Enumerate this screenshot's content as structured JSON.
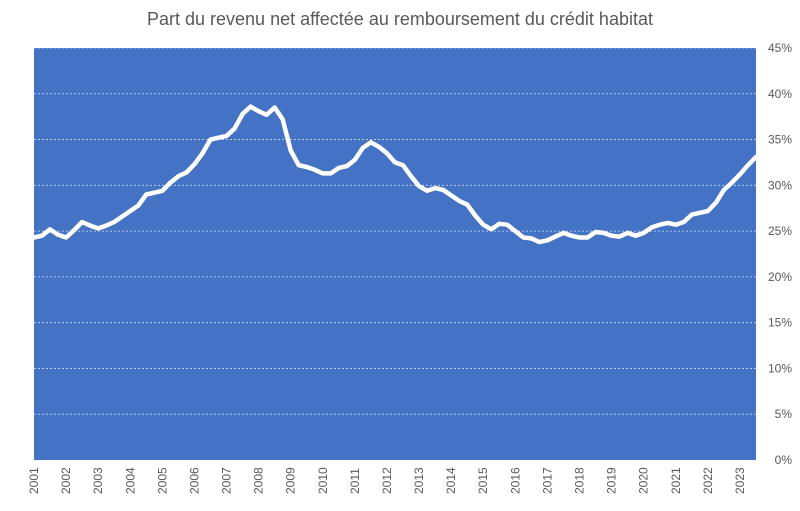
{
  "chart_data": {
    "type": "line",
    "title": "Part du revenu net affectée au remboursement du crédit habitat",
    "xlabel": "",
    "ylabel": "",
    "x_tick_labels": [
      "2001",
      "2002",
      "2003",
      "2004",
      "2005",
      "2006",
      "2007",
      "2008",
      "2009",
      "2010",
      "2011",
      "2012",
      "2013",
      "2014",
      "2015",
      "2016",
      "2017",
      "2018",
      "2019",
      "2020",
      "2021",
      "2022",
      "2023"
    ],
    "y_tick_labels": [
      "0%",
      "5%",
      "10%",
      "15%",
      "20%",
      "25%",
      "30%",
      "35%",
      "40%",
      "45%"
    ],
    "ylim": [
      0,
      45
    ],
    "xlim": [
      2001.0,
      2023.5
    ],
    "y_axis_side": "right",
    "grid": true,
    "colors": {
      "plot_background": "#4472C4",
      "line": "#FFFFFF",
      "grid": "#FFFFFF",
      "text": "#595959"
    },
    "series": [
      {
        "x": [
          2001.0,
          2001.25,
          2001.5,
          2001.75,
          2002.0,
          2002.25,
          2002.5,
          2002.75,
          2003.0,
          2003.25,
          2003.5,
          2003.75,
          2004.0,
          2004.25,
          2004.5,
          2004.75,
          2005.0,
          2005.25,
          2005.5,
          2005.75,
          2006.0,
          2006.25,
          2006.5,
          2006.75,
          2007.0,
          2007.25,
          2007.5,
          2007.75,
          2008.0,
          2008.25,
          2008.5,
          2008.75,
          2009.0,
          2009.25,
          2009.5,
          2009.75,
          2010.0,
          2010.25,
          2010.5,
          2010.75,
          2011.0,
          2011.25,
          2011.5,
          2011.75,
          2012.0,
          2012.25,
          2012.5,
          2012.75,
          2013.0,
          2013.25,
          2013.5,
          2013.75,
          2014.0,
          2014.25,
          2014.5,
          2014.75,
          2015.0,
          2015.25,
          2015.5,
          2015.75,
          2016.0,
          2016.25,
          2016.5,
          2016.75,
          2017.0,
          2017.25,
          2017.5,
          2017.75,
          2018.0,
          2018.25,
          2018.5,
          2018.75,
          2019.0,
          2019.25,
          2019.5,
          2019.75,
          2020.0,
          2020.25,
          2020.5,
          2020.75,
          2021.0,
          2021.25,
          2021.5,
          2021.75,
          2022.0,
          2022.25,
          2022.5,
          2022.75,
          2023.0,
          2023.25,
          2023.5
        ],
        "values": [
          24.3,
          24.5,
          25.2,
          24.6,
          24.3,
          25.1,
          26.0,
          25.6,
          25.3,
          25.6,
          26.0,
          26.6,
          27.2,
          27.8,
          29.0,
          29.2,
          29.4,
          30.3,
          31.0,
          31.4,
          32.3,
          33.5,
          35.0,
          35.2,
          35.4,
          36.2,
          37.8,
          38.6,
          38.1,
          37.7,
          38.5,
          37.2,
          33.8,
          32.2,
          32.0,
          31.7,
          31.3,
          31.3,
          31.9,
          32.1,
          32.8,
          34.1,
          34.7,
          34.2,
          33.5,
          32.5,
          32.2,
          31.0,
          29.9,
          29.4,
          29.7,
          29.5,
          28.9,
          28.3,
          27.9,
          26.7,
          25.7,
          25.2,
          25.8,
          25.7,
          25.0,
          24.3,
          24.2,
          23.8,
          24.0,
          24.4,
          24.8,
          24.5,
          24.3,
          24.3,
          24.9,
          24.8,
          24.5,
          24.4,
          24.8,
          24.5,
          24.8,
          25.4,
          25.7,
          25.9,
          25.7,
          26.0,
          26.8,
          27.0,
          27.2,
          28.1,
          29.5,
          30.3,
          31.2,
          32.2,
          33.1
        ]
      }
    ]
  }
}
